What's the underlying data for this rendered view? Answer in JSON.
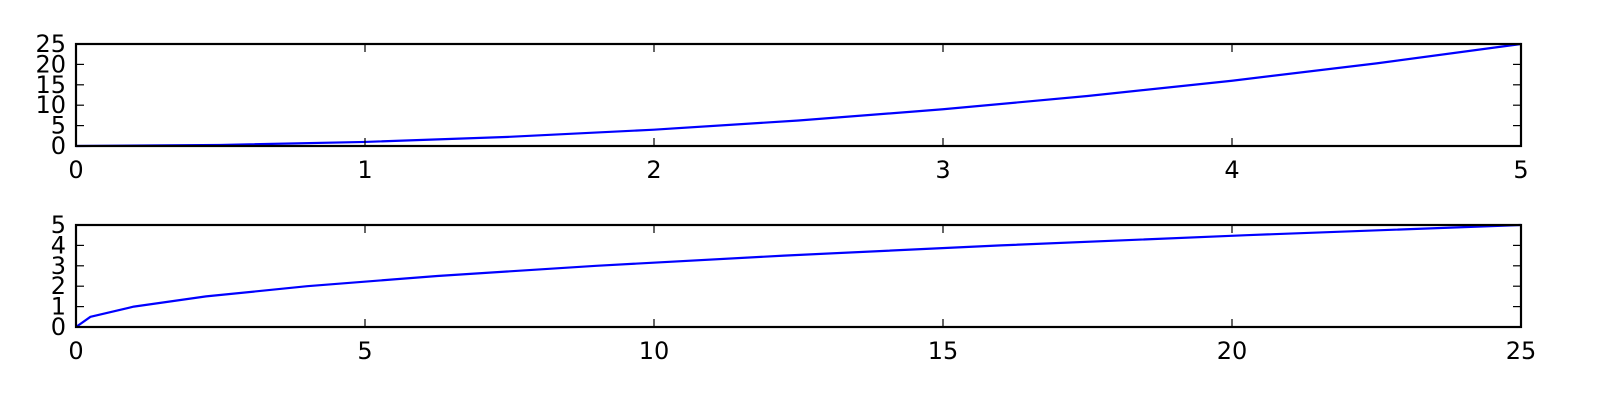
{
  "chart_data": [
    {
      "type": "line",
      "title": "",
      "xlabel": "",
      "ylabel": "",
      "xlim": [
        0,
        5
      ],
      "ylim": [
        0,
        25
      ],
      "xticks": [
        0,
        1,
        2,
        3,
        4,
        5
      ],
      "yticks": [
        0,
        5,
        10,
        15,
        20,
        25
      ],
      "grid": false,
      "color": "#0000ff",
      "series": [
        {
          "x": [
            0,
            0.5,
            1,
            1.5,
            2,
            2.5,
            3,
            3.5,
            4,
            4.5,
            5
          ],
          "y": [
            0,
            0.25,
            1,
            2.25,
            4,
            6.25,
            9,
            12.25,
            16,
            20.25,
            25
          ]
        }
      ]
    },
    {
      "type": "line",
      "title": "",
      "xlabel": "",
      "ylabel": "",
      "xlim": [
        0,
        25
      ],
      "ylim": [
        0,
        5
      ],
      "xticks": [
        0,
        5,
        10,
        15,
        20,
        25
      ],
      "yticks": [
        0,
        1,
        2,
        3,
        4,
        5
      ],
      "grid": false,
      "color": "#0000ff",
      "series": [
        {
          "x": [
            0,
            0.25,
            1,
            2.25,
            4,
            6.25,
            9,
            12.25,
            16,
            20.25,
            25
          ],
          "y": [
            0,
            0.5,
            1,
            1.5,
            2,
            2.5,
            3,
            3.5,
            4,
            4.5,
            5
          ]
        }
      ]
    }
  ]
}
